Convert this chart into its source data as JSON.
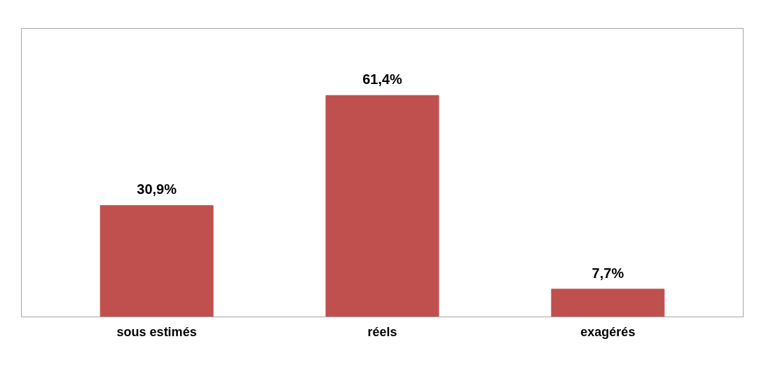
{
  "chart_data": {
    "type": "bar",
    "categories": [
      "sous estimés",
      "réels",
      "exagérés"
    ],
    "values": [
      30.9,
      61.4,
      7.7
    ],
    "color": "#c0504d",
    "value_labels": [
      "30,9%",
      "61,4%",
      "7,7%"
    ],
    "ylim": [
      0,
      80
    ],
    "grid": false,
    "tick_labels": "x"
  }
}
